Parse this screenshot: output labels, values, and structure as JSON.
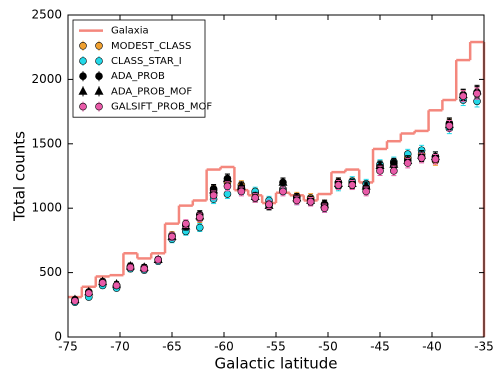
{
  "chart_data": {
    "type": "scatter",
    "xlabel": "Galactic latitude",
    "ylabel": "Total counts",
    "xlim": [
      -75,
      -35
    ],
    "ylim": [
      0,
      2500
    ],
    "xticks": [
      -75,
      -70,
      -65,
      -60,
      -55,
      -50,
      -45,
      -40,
      -35
    ],
    "yticks": [
      0,
      500,
      1000,
      1500,
      2000,
      2500
    ],
    "legend": "upper left",
    "histogram": {
      "name": "Galaxia",
      "color": "#f4877d",
      "bins": [
        -75,
        -73.67,
        -72.33,
        -71,
        -69.67,
        -68.33,
        -67,
        -65.67,
        -64.33,
        -63,
        -61.67,
        -60.33,
        -59,
        -57.67,
        -56.33,
        -55,
        -53.67,
        -52.33,
        -51,
        -49.67,
        -48.33,
        -47,
        -45.67,
        -44.33,
        -43,
        -41.67,
        -40.33,
        -39,
        -37.67,
        -36.33,
        -35
      ],
      "counts": [
        310,
        390,
        470,
        480,
        650,
        610,
        650,
        880,
        1020,
        1060,
        1300,
        1320,
        1140,
        1100,
        1040,
        1120,
        1100,
        1060,
        1110,
        1280,
        1300,
        1200,
        1460,
        1520,
        1580,
        1600,
        1760,
        1840,
        2150,
        2290
      ]
    },
    "x": [
      -74.33,
      -73,
      -71.67,
      -70.33,
      -69,
      -67.67,
      -66.33,
      -65,
      -63.67,
      -62.33,
      -61,
      -59.67,
      -58.33,
      -57,
      -55.67,
      -54.33,
      -53,
      -51.67,
      -50.33,
      -49,
      -47.67,
      -46.33,
      -45,
      -43.67,
      -42.33,
      -41,
      -39.67,
      -38.33,
      -37,
      -35.67
    ],
    "series": [
      {
        "name": "MODEST_CLASS",
        "color": "#f0a030",
        "marker": "circle",
        "values": [
          280,
          340,
          420,
          400,
          540,
          530,
          600,
          790,
          870,
          920,
          1140,
          1200,
          1180,
          1120,
          1030,
          1150,
          1090,
          1080,
          1030,
          1200,
          1200,
          1160,
          1330,
          1330,
          1390,
          1420,
          1370,
          1650,
          1870,
          1890
        ],
        "errors": [
          17,
          19,
          21,
          20,
          23,
          23,
          25,
          28,
          30,
          31,
          34,
          35,
          34,
          33,
          32,
          34,
          33,
          33,
          32,
          35,
          35,
          34,
          36,
          37,
          37,
          38,
          37,
          41,
          43,
          44
        ]
      },
      {
        "name": "CLASS_STAR_I",
        "color": "#22d8e8",
        "marker": "circle",
        "values": [
          270,
          310,
          400,
          380,
          530,
          520,
          590,
          760,
          820,
          850,
          1070,
          1110,
          1140,
          1130,
          1060,
          1140,
          1060,
          1060,
          1000,
          1170,
          1210,
          1190,
          1340,
          1360,
          1420,
          1450,
          1400,
          1620,
          1840,
          1830
        ],
        "errors": [
          17,
          19,
          21,
          20,
          23,
          23,
          25,
          28,
          30,
          31,
          34,
          35,
          34,
          33,
          32,
          34,
          33,
          33,
          32,
          35,
          35,
          34,
          36,
          37,
          37,
          38,
          37,
          41,
          43,
          44
        ]
      },
      {
        "name": "ADA_PROB",
        "color": "#000000",
        "marker": "circle",
        "values": [
          290,
          350,
          430,
          400,
          550,
          540,
          600,
          780,
          870,
          950,
          1150,
          1230,
          1160,
          1080,
          1020,
          1200,
          1080,
          1060,
          1030,
          1200,
          1190,
          1160,
          1320,
          1350,
          1370,
          1400,
          1400,
          1660,
          1880,
          1900
        ],
        "errors": [
          17,
          19,
          21,
          20,
          23,
          23,
          25,
          28,
          30,
          31,
          34,
          35,
          34,
          33,
          32,
          34,
          33,
          33,
          32,
          35,
          35,
          34,
          36,
          37,
          37,
          38,
          37,
          41,
          43,
          44
        ]
      },
      {
        "name": "ADA_PROB_MOF",
        "color": "#000000",
        "marker": "triangle",
        "values": [
          290,
          350,
          430,
          410,
          550,
          540,
          600,
          780,
          860,
          940,
          1140,
          1230,
          1170,
          1090,
          1020,
          1200,
          1080,
          1060,
          1030,
          1190,
          1190,
          1170,
          1330,
          1340,
          1370,
          1410,
          1400,
          1650,
          1880,
          1910
        ],
        "errors": [
          17,
          19,
          21,
          20,
          23,
          23,
          25,
          28,
          30,
          31,
          34,
          35,
          34,
          33,
          32,
          34,
          33,
          33,
          32,
          35,
          35,
          34,
          36,
          37,
          37,
          38,
          37,
          41,
          43,
          44
        ]
      },
      {
        "name": "GALSIFT_PROB_MOF",
        "color": "#e85aa8",
        "marker": "circle",
        "values": [
          280,
          340,
          420,
          400,
          540,
          530,
          600,
          780,
          880,
          930,
          1100,
          1170,
          1130,
          1080,
          1030,
          1130,
          1060,
          1050,
          1000,
          1180,
          1180,
          1130,
          1290,
          1290,
          1350,
          1390,
          1380,
          1640,
          1870,
          1890
        ],
        "errors": [
          17,
          19,
          21,
          20,
          23,
          23,
          25,
          28,
          30,
          31,
          34,
          35,
          34,
          33,
          32,
          34,
          33,
          33,
          32,
          35,
          35,
          34,
          36,
          37,
          37,
          38,
          37,
          41,
          43,
          44
        ]
      }
    ]
  }
}
